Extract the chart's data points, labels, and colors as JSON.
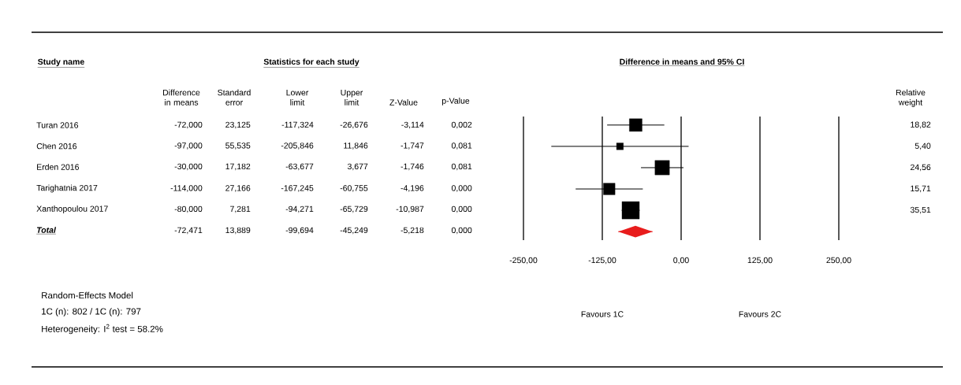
{
  "chart_data": [
    {
      "type": "other",
      "title": "Statistics for each study",
      "ylabel": "Study name",
      "categories": [
        "Difference in means",
        "Standard error",
        "Lower limit",
        "Upper limit",
        "Z-Value",
        "p-Value"
      ],
      "y_categories": [
        "Turan 2016",
        "Chen 2016",
        "Erden 2016",
        "Tarighatnia 2017",
        "Xanthopoulou 2017",
        "Total"
      ],
      "cell_labels": [
        [
          "-72,000",
          "23,125",
          "-117,324",
          "-26,676",
          "-3,114",
          "0,002"
        ],
        [
          "-97,000",
          "55,535",
          "-205,846",
          "11,846",
          "-1,747",
          "0,081"
        ],
        [
          "-30,000",
          "17,182",
          "-63,677",
          "3,677",
          "-1,746",
          "0,081"
        ],
        [
          "-114,000",
          "27,166",
          "-167,245",
          "-60,755",
          "-4,196",
          "0,000"
        ],
        [
          "-80,000",
          "7,281",
          "-94,271",
          "-65,729",
          "-10,987",
          "0,000"
        ],
        [
          "-72,471",
          "13,889",
          "-99,694",
          "-45,249",
          "-5,218",
          "0,000"
        ]
      ],
      "annotations": [
        "Random-Effects Model",
        "1C (n): 802 / 1C (n): 797",
        "Heterogeneity: I$^{2}$ test = 58.2%"
      ]
    },
    {
      "type": "scatter",
      "orientation": "horizontal",
      "title": "Difference in means and 95% CI",
      "y2label": "Relative weight",
      "categories": [
        null,
        null,
        null,
        null,
        null,
        null
      ],
      "xlim": [
        -250,
        250
      ],
      "xticks": [
        {
          "value": -250,
          "label": "-250,00"
        },
        {
          "value": -125,
          "label": "-125,00"
        },
        {
          "value": 0,
          "label": "0,00"
        },
        {
          "value": 125,
          "label": "125,00"
        },
        {
          "value": 250,
          "label": "250,00"
        }
      ],
      "grid": "x",
      "series": [
        {
          "color": "#000000",
          "marker": "square",
          "values": [
            -72.0,
            -97.0,
            -30.0,
            -114.0,
            -80.0,
            null
          ],
          "errors": [
            [
              -117.324,
              -26.676
            ],
            [
              -205.846,
              11.846
            ],
            [
              -63.677,
              3.677
            ],
            [
              -167.245,
              -60.755
            ],
            [
              -94.271,
              -65.729
            ],
            null
          ],
          "sizes": [
            18.82,
            5.4,
            24.56,
            15.71,
            35.51,
            null
          ],
          "value_labels": [
            "18,82",
            "5,40",
            "24,56",
            "15,71",
            "35,51",
            null
          ]
        },
        {
          "color": "#e81c1c",
          "marker": "diamond",
          "values": [
            null,
            null,
            null,
            null,
            null,
            -72.471
          ],
          "errors": [
            null,
            null,
            null,
            null,
            null,
            [
              -99.694,
              -45.249
            ]
          ]
        }
      ],
      "annotations": [
        "Favours 1C",
        "Favours 2C"
      ]
    }
  ]
}
